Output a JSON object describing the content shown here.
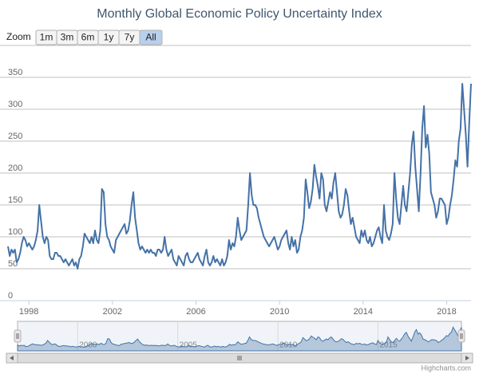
{
  "chart_data": {
    "type": "line",
    "title": "Monthly Global Economic Policy Uncertainty Index",
    "zoom": {
      "label": "Zoom",
      "buttons": [
        "1m",
        "3m",
        "6m",
        "1y",
        "7y",
        "All"
      ],
      "selected": "All"
    },
    "color": "#4572a7",
    "x": [
      "1997-01",
      "1997-02",
      "1997-03",
      "1997-04",
      "1997-05",
      "1997-06",
      "1997-07",
      "1997-08",
      "1997-09",
      "1997-10",
      "1997-11",
      "1997-12",
      "1998-01",
      "1998-02",
      "1998-03",
      "1998-04",
      "1998-05",
      "1998-06",
      "1998-07",
      "1998-08",
      "1998-09",
      "1998-10",
      "1998-11",
      "1998-12",
      "1999-01",
      "1999-02",
      "1999-03",
      "1999-04",
      "1999-05",
      "1999-06",
      "1999-07",
      "1999-08",
      "1999-09",
      "1999-10",
      "1999-11",
      "1999-12",
      "2000-01",
      "2000-02",
      "2000-03",
      "2000-04",
      "2000-05",
      "2000-06",
      "2000-07",
      "2000-08",
      "2000-09",
      "2000-10",
      "2000-11",
      "2000-12",
      "2001-01",
      "2001-02",
      "2001-03",
      "2001-04",
      "2001-05",
      "2001-06",
      "2001-07",
      "2001-08",
      "2001-09",
      "2001-10",
      "2001-11",
      "2001-12",
      "2002-01",
      "2002-02",
      "2002-03",
      "2002-04",
      "2002-05",
      "2002-06",
      "2002-07",
      "2002-08",
      "2002-09",
      "2002-10",
      "2002-11",
      "2002-12",
      "2003-01",
      "2003-02",
      "2003-03",
      "2003-04",
      "2003-05",
      "2003-06",
      "2003-07",
      "2003-08",
      "2003-09",
      "2003-10",
      "2003-11",
      "2003-12",
      "2004-01",
      "2004-02",
      "2004-03",
      "2004-04",
      "2004-05",
      "2004-06",
      "2004-07",
      "2004-08",
      "2004-09",
      "2004-10",
      "2004-11",
      "2004-12",
      "2005-01",
      "2005-02",
      "2005-03",
      "2005-04",
      "2005-05",
      "2005-06",
      "2005-07",
      "2005-08",
      "2005-09",
      "2005-10",
      "2005-11",
      "2005-12",
      "2006-01",
      "2006-02",
      "2006-03",
      "2006-04",
      "2006-05",
      "2006-06",
      "2006-07",
      "2006-08",
      "2006-09",
      "2006-10",
      "2006-11",
      "2006-12",
      "2007-01",
      "2007-02",
      "2007-03",
      "2007-04",
      "2007-05",
      "2007-06",
      "2007-07",
      "2007-08",
      "2007-09",
      "2007-10",
      "2007-11",
      "2007-12",
      "2008-01",
      "2008-02",
      "2008-03",
      "2008-04",
      "2008-05",
      "2008-06",
      "2008-07",
      "2008-08",
      "2008-09",
      "2008-10",
      "2008-11",
      "2008-12",
      "2009-01",
      "2009-02",
      "2009-03",
      "2009-04",
      "2009-05",
      "2009-06",
      "2009-07",
      "2009-08",
      "2009-09",
      "2009-10",
      "2009-11",
      "2009-12",
      "2010-01",
      "2010-02",
      "2010-03",
      "2010-04",
      "2010-05",
      "2010-06",
      "2010-07",
      "2010-08",
      "2010-09",
      "2010-10",
      "2010-11",
      "2010-12",
      "2011-01",
      "2011-02",
      "2011-03",
      "2011-04",
      "2011-05",
      "2011-06",
      "2011-07",
      "2011-08",
      "2011-09",
      "2011-10",
      "2011-11",
      "2011-12",
      "2012-01",
      "2012-02",
      "2012-03",
      "2012-04",
      "2012-05",
      "2012-06",
      "2012-07",
      "2012-08",
      "2012-09",
      "2012-10",
      "2012-11",
      "2012-12",
      "2013-01",
      "2013-02",
      "2013-03",
      "2013-04",
      "2013-05",
      "2013-06",
      "2013-07",
      "2013-08",
      "2013-09",
      "2013-10",
      "2013-11",
      "2013-12",
      "2014-01",
      "2014-02",
      "2014-03",
      "2014-04",
      "2014-05",
      "2014-06",
      "2014-07",
      "2014-08",
      "2014-09",
      "2014-10",
      "2014-11",
      "2014-12",
      "2015-01",
      "2015-02",
      "2015-03",
      "2015-04",
      "2015-05",
      "2015-06",
      "2015-07",
      "2015-08",
      "2015-09",
      "2015-10",
      "2015-11",
      "2015-12",
      "2016-01",
      "2016-02",
      "2016-03",
      "2016-04",
      "2016-05",
      "2016-06",
      "2016-07",
      "2016-08",
      "2016-09",
      "2016-10",
      "2016-11",
      "2016-12",
      "2017-01",
      "2017-02",
      "2017-03",
      "2017-04",
      "2017-05",
      "2017-06",
      "2017-07",
      "2017-08",
      "2017-09",
      "2017-10",
      "2017-11",
      "2017-12",
      "2018-01",
      "2018-02",
      "2018-03",
      "2018-04",
      "2018-05",
      "2018-06",
      "2018-07",
      "2018-08",
      "2018-09",
      "2018-10",
      "2018-11",
      "2018-12",
      "2019-01",
      "2019-02",
      "2019-03"
    ],
    "values": [
      85,
      70,
      80,
      75,
      80,
      60,
      65,
      75,
      90,
      100,
      95,
      85,
      90,
      85,
      80,
      85,
      95,
      110,
      150,
      125,
      100,
      90,
      100,
      95,
      70,
      65,
      65,
      75,
      75,
      70,
      70,
      65,
      60,
      65,
      60,
      55,
      60,
      65,
      55,
      60,
      50,
      65,
      70,
      85,
      105,
      100,
      95,
      90,
      100,
      90,
      110,
      95,
      90,
      110,
      175,
      170,
      120,
      100,
      95,
      85,
      80,
      75,
      95,
      100,
      105,
      110,
      115,
      120,
      105,
      110,
      125,
      150,
      170,
      130,
      110,
      90,
      80,
      85,
      80,
      75,
      80,
      75,
      80,
      75,
      75,
      70,
      80,
      80,
      75,
      80,
      100,
      80,
      70,
      75,
      80,
      65,
      60,
      55,
      70,
      65,
      60,
      55,
      70,
      75,
      65,
      60,
      60,
      65,
      70,
      75,
      65,
      60,
      55,
      70,
      80,
      60,
      55,
      60,
      70,
      60,
      65,
      60,
      55,
      65,
      55,
      60,
      70,
      95,
      80,
      90,
      85,
      100,
      130,
      110,
      95,
      100,
      105,
      110,
      150,
      200,
      165,
      150,
      150,
      145,
      130,
      120,
      110,
      100,
      95,
      90,
      85,
      90,
      95,
      100,
      90,
      80,
      85,
      95,
      100,
      105,
      110,
      90,
      80,
      100,
      85,
      95,
      75,
      80,
      100,
      110,
      130,
      190,
      170,
      145,
      155,
      175,
      213,
      195,
      180,
      160,
      200,
      190,
      150,
      140,
      155,
      170,
      160,
      185,
      200,
      170,
      140,
      130,
      135,
      150,
      175,
      165,
      140,
      120,
      130,
      115,
      100,
      95,
      90,
      110,
      100,
      110,
      95,
      90,
      100,
      85,
      90,
      100,
      110,
      115,
      100,
      90,
      150,
      110,
      100,
      95,
      105,
      120,
      200,
      160,
      130,
      120,
      150,
      180,
      150,
      140,
      170,
      200,
      245,
      265,
      210,
      175,
      140,
      200,
      270,
      305,
      240,
      260,
      230,
      170,
      160,
      150,
      130,
      140,
      160,
      160,
      155,
      150,
      120,
      130,
      150,
      165,
      190,
      220,
      210,
      250,
      270,
      340,
      300,
      260,
      210,
      280,
      340
    ],
    "xlim": [
      "1997-01",
      "2019-03"
    ],
    "xticks": [
      1998,
      2002,
      2006,
      2010,
      2014,
      2018
    ],
    "ylim": [
      0,
      400
    ],
    "yticks": [
      0,
      50,
      100,
      150,
      200,
      250,
      300,
      350
    ],
    "grid": true,
    "navigator": {
      "xticks": [
        2000,
        2005,
        2010,
        2015
      ]
    },
    "credit": "Highcharts.com"
  }
}
